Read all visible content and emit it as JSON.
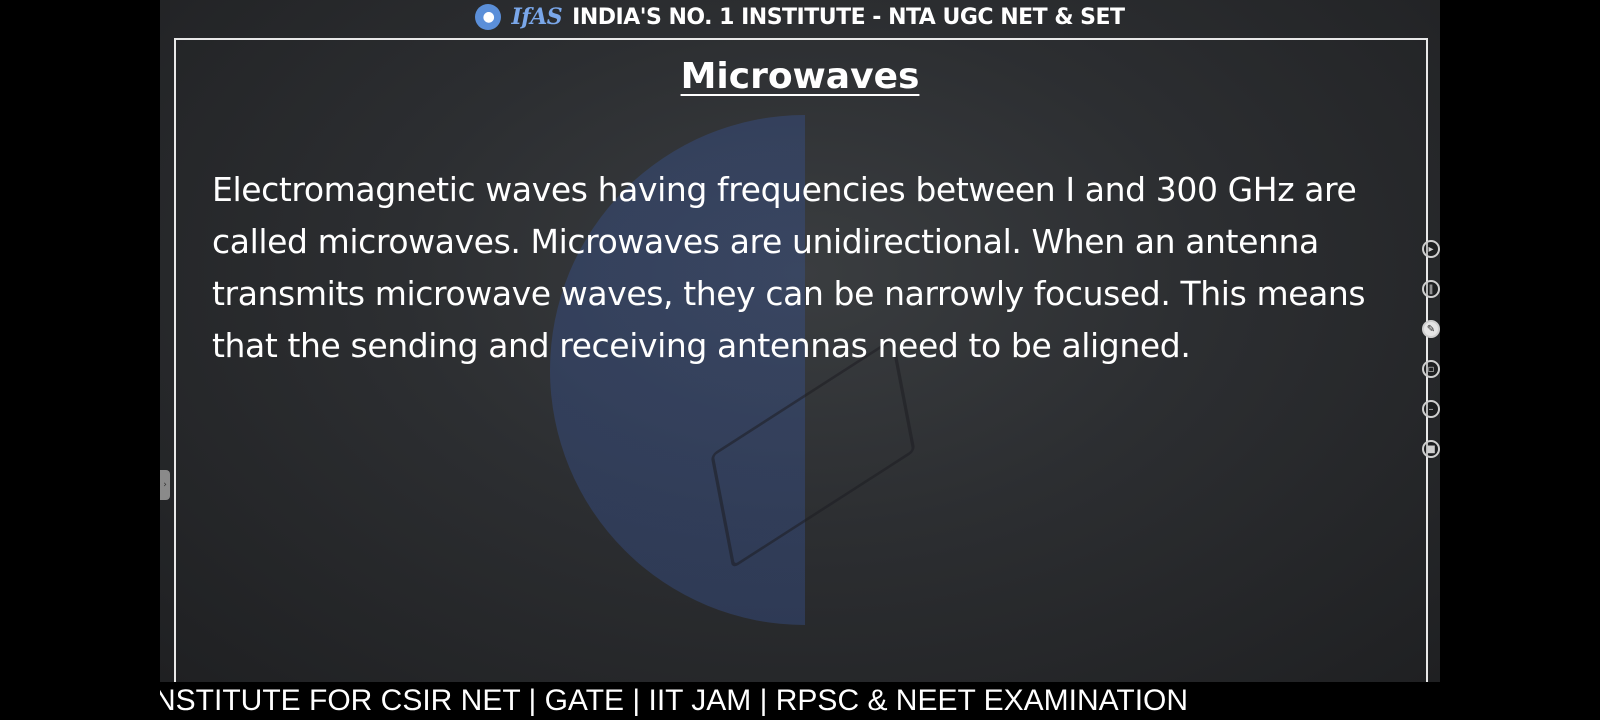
{
  "header": {
    "logo_icon": "ifas-logo-icon",
    "brand": "IfAS",
    "tagline": "INDIA'S NO. 1 INSTITUTE - NTA UGC NET & SET"
  },
  "slide": {
    "title": "Microwaves",
    "body": "Electromagnetic waves having frequencies between I and 300 GHz are called microwaves. Microwaves are unidirectional. When an antenna transmits microwave waves, they can be narrowly focused. This means that the sending and receiving antennas need to be aligned."
  },
  "toolbar": {
    "icons": [
      "play-icon",
      "pause-icon",
      "pen-icon",
      "eraser-icon",
      "minus-icon",
      "stop-icon"
    ]
  },
  "ticker": {
    "text": "NSTITUTE FOR CSIR NET | GATE | IIT JAM | RPSC & NEET EXAMINATION"
  }
}
